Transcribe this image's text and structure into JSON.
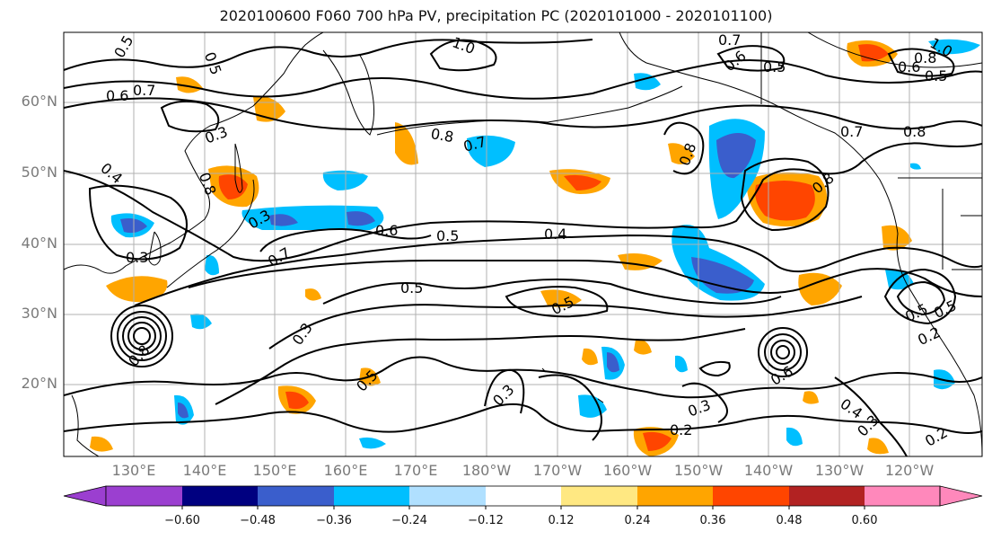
{
  "title": "2020100600 F060 700 hPa PV, precipitation PC (2020101000 - 2020101100)",
  "lat_labels": [
    "60°N",
    "50°N",
    "40°N",
    "30°N",
    "20°N"
  ],
  "lon_labels": [
    "130°E",
    "140°E",
    "150°E",
    "160°E",
    "170°E",
    "180°W",
    "170°W",
    "160°W",
    "150°W",
    "140°W",
    "130°W",
    "120°W"
  ],
  "colorbar": {
    "tick_labels": [
      "−0.60",
      "−0.48",
      "−0.36",
      "−0.24",
      "−0.12",
      "0.12",
      "0.24",
      "0.36",
      "0.48",
      "0.60"
    ],
    "colors": [
      "#9b3fd0",
      "#000080",
      "#3a5ecc",
      "#00bfff",
      "#b0e0ff",
      "#ffffff",
      "#ffe882",
      "#ffa500",
      "#ff4500",
      "#b22222",
      "#ff88bb"
    ]
  },
  "contour_labels": [
    "0.5",
    "0.5",
    "1.0",
    "0.7",
    "0.6",
    "0.5",
    "1.0",
    "0.8",
    "0.6",
    "0.5",
    "0.6",
    "0.7",
    "0.3",
    "0.4",
    "0.8",
    "0.8",
    "0.7",
    "0.8",
    "0.7",
    "0.8",
    "0.8",
    "0.3",
    "0.3",
    "0.7",
    "0.6",
    "0.5",
    "0.4",
    "0.5",
    "0.5",
    "0.5",
    "0.3",
    "0.5",
    "0.8",
    "0.3",
    "0.3",
    "0.2",
    "0.6",
    "0.4",
    "0.3",
    "0.2",
    "0.2",
    "0.5"
  ]
}
